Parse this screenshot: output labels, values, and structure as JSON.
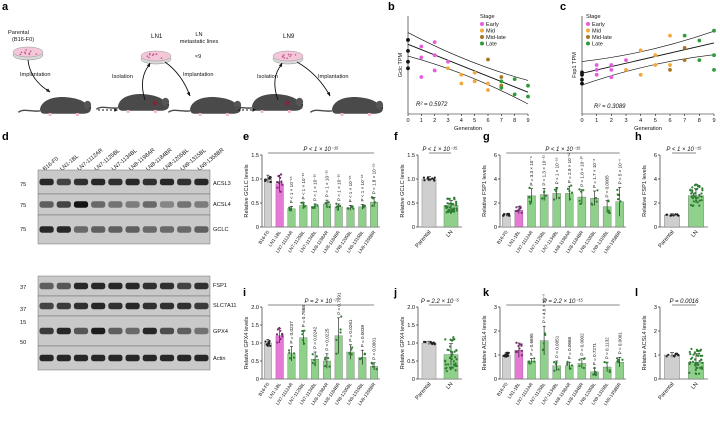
{
  "figure": {
    "panel_labels": [
      "a",
      "b",
      "c",
      "d",
      "e",
      "f",
      "g",
      "h",
      "i",
      "j",
      "k",
      "l"
    ],
    "a": {
      "parental_label": "Parental\n(B16-F0)",
      "ln1": "LN1",
      "ln_metastatic": "LN\nmetastatic lines",
      "times": "×9",
      "ln9": "LN9",
      "steps": [
        "Implantation",
        "Isolation",
        "Implantation",
        "Isolation",
        "Implantation"
      ]
    },
    "d": {
      "lanes": [
        "B16-F0",
        "LN1-1BL",
        "LN7-1112AR",
        "LN7-1125BL",
        "LN7-1134BL",
        "LN8-1198AR",
        "LN8-1184BR",
        "LN8-1205BL",
        "LN9-1315BL",
        "LN9-1358BR"
      ],
      "bands": [
        "ACSL3",
        "ACSL4",
        "GCLC",
        "FSP1",
        "SLC7A11",
        "GPX4",
        "Actin"
      ],
      "markers": [
        "75",
        "75",
        "75",
        "37",
        "37",
        "15",
        "50"
      ]
    },
    "stage_colors": {
      "Early": "#e75be0",
      "Mid": "#f2a93b",
      "Mid-late": "#a87726",
      "Late": "#2e9c3a",
      "Parental": "#111111"
    },
    "group_colors": {
      "parental": "#cfcfcf",
      "ln1": "#e678d6",
      "ln": "#8fd08a",
      "dot": "#2e7d32"
    }
  },
  "chart_data": [
    {
      "panel": "b",
      "type": "scatter",
      "ylabel": "Gclc TPM",
      "xlabel": "Generation",
      "xticks": [
        0,
        1,
        2,
        3,
        4,
        5,
        6,
        7,
        8,
        9
      ],
      "xlim": [
        0,
        9
      ],
      "ylim": [
        0,
        45
      ],
      "annotation": "R² = 0.5972",
      "legend_title": "Stage",
      "legend": [
        "Early",
        "Mid",
        "Mid-late",
        "Late"
      ],
      "series": [
        {
          "name": "Parental",
          "points": [
            [
              0,
              34
            ],
            [
              0,
              29
            ],
            [
              0,
              24
            ],
            [
              0,
              21
            ]
          ]
        },
        {
          "name": "Early",
          "points": [
            [
              1,
              31
            ],
            [
              1,
              26
            ],
            [
              1,
              17
            ],
            [
              2,
              33
            ],
            [
              2,
              27
            ],
            [
              2,
              20
            ],
            [
              3,
              24
            ]
          ]
        },
        {
          "name": "Mid",
          "points": [
            [
              3,
              21
            ],
            [
              4,
              18
            ],
            [
              4,
              14
            ],
            [
              5,
              19
            ],
            [
              5,
              15
            ],
            [
              6,
              14
            ],
            [
              6,
              11
            ]
          ]
        },
        {
          "name": "Mid-late",
          "points": [
            [
              6,
              25
            ],
            [
              7,
              17
            ],
            [
              7,
              13
            ]
          ]
        },
        {
          "name": "Late",
          "points": [
            [
              7,
              15
            ],
            [
              7,
              12
            ],
            [
              8,
              16
            ],
            [
              8,
              9
            ],
            [
              9,
              13
            ],
            [
              9,
              8
            ]
          ]
        }
      ],
      "fit": {
        "start": [
          0,
          32
        ],
        "end": [
          9,
          10
        ]
      }
    },
    {
      "panel": "c",
      "type": "scatter",
      "ylabel": "Fsp1 TPM",
      "xlabel": "Generation",
      "xticks": [
        0,
        1,
        2,
        3,
        4,
        5,
        6,
        7,
        8,
        9
      ],
      "xlim": [
        0,
        9
      ],
      "ylim": [
        0,
        20
      ],
      "annotation": "R² = 0.3089",
      "legend_title": "Stage",
      "legend": [
        "Early",
        "Mid",
        "Mid-late",
        "Late"
      ],
      "series": [
        {
          "name": "Parental",
          "points": [
            [
              0,
              8.5
            ],
            [
              0,
              8
            ],
            [
              0,
              7
            ],
            [
              0,
              6.2
            ]
          ]
        },
        {
          "name": "Early",
          "points": [
            [
              1,
              10
            ],
            [
              1,
              9
            ],
            [
              1,
              8
            ],
            [
              2,
              10
            ],
            [
              2,
              9
            ],
            [
              2,
              7.5
            ],
            [
              3,
              11
            ]
          ]
        },
        {
          "name": "Mid",
          "points": [
            [
              3,
              9
            ],
            [
              4,
              8
            ],
            [
              4,
              13
            ],
            [
              5,
              10
            ],
            [
              5,
              12
            ],
            [
              6,
              10
            ],
            [
              6,
              16
            ]
          ]
        },
        {
          "name": "Mid-late",
          "points": [
            [
              6,
              9
            ],
            [
              7,
              13.5
            ],
            [
              7,
              11
            ]
          ]
        },
        {
          "name": "Late",
          "points": [
            [
              7,
              16
            ],
            [
              8,
              15
            ],
            [
              8,
              11
            ],
            [
              9,
              17
            ],
            [
              9,
              12
            ],
            [
              9,
              9
            ]
          ]
        }
      ],
      "fit": {
        "start": [
          0,
          8.3
        ],
        "end": [
          9,
          14.5
        ]
      }
    },
    {
      "panel": "e",
      "type": "bar",
      "ylabel": "Relative GCLC levels",
      "ylim": [
        0,
        1.5
      ],
      "yticks": [
        "0",
        "0.5",
        "1.0",
        "1.5"
      ],
      "top_p": "P < 1 × 10⁻¹⁵",
      "categories": [
        "B16-F0",
        "LN1-1BL",
        "LN7-1112AR",
        "LN7-1125BL",
        "LN7-1134BL",
        "LN8-1198AR",
        "LN8-1184BR",
        "LN8-1205BL",
        "LN9-1315BL",
        "LN9-1358BR"
      ],
      "values": [
        1.0,
        0.9,
        0.38,
        0.45,
        0.43,
        0.48,
        0.42,
        0.4,
        0.42,
        0.52
      ],
      "errors": [
        0.08,
        0.18,
        0.05,
        0.06,
        0.05,
        0.08,
        0.06,
        0.05,
        0.05,
        0.1
      ],
      "pvals": [
        "",
        "",
        "P < 1 × 10⁻¹⁵",
        "P < 1 × 10⁻¹⁵",
        "P < 1 × 10⁻¹⁵",
        "P < 1 × 10⁻¹⁵",
        "P < 1 × 10⁻¹⁵",
        "P < 1 × 10⁻¹⁵",
        "P < 1 × 10⁻¹⁵",
        "P = 1.8 × 10⁻¹⁵"
      ]
    },
    {
      "panel": "f",
      "type": "bar",
      "ylabel": "Relative GCLC levels",
      "ylim": [
        0,
        1.5
      ],
      "yticks": [
        "0",
        "0.5",
        "1.0",
        "1.5"
      ],
      "top_p": "P < 1 × 10⁻¹⁵",
      "categories": [
        "Parental",
        "LN"
      ],
      "values": [
        1.0,
        0.45
      ],
      "errors": [
        0.05,
        0.1
      ]
    },
    {
      "panel": "g",
      "type": "bar",
      "ylabel": "Relative FSP1 levels",
      "ylim": [
        0,
        6
      ],
      "yticks": [
        "0",
        "2",
        "4",
        "6"
      ],
      "top_p": "P < 1 × 10⁻¹⁵",
      "categories": [
        "B16-F0",
        "LN1-1BL",
        "LN7-1112AR",
        "LN7-1125BL",
        "LN7-1134BL",
        "LN8-1198AR",
        "LN8-1184BR",
        "LN8-1205BL",
        "LN9-1315BL",
        "LN9-1358BR"
      ],
      "values": [
        1.0,
        1.4,
        2.6,
        2.7,
        2.8,
        2.8,
        2.5,
        2.4,
        1.7,
        2.1
      ],
      "errors": [
        0.1,
        0.3,
        0.6,
        0.5,
        0.5,
        0.6,
        0.6,
        0.6,
        0.5,
        1.2
      ],
      "pvals": [
        "",
        "",
        "P = 3.3 × 10⁻⁸",
        "P = 1.3 × 10⁻¹¹",
        "P < 1 × 10⁻¹⁵",
        "P = 2.9 × 10⁻¹²",
        "P = 1.8 × 10⁻¹⁰",
        "P = 1.7 × 10⁻⁸",
        "P = 0.0005",
        "P = 5 × 10⁻⁶"
      ]
    },
    {
      "panel": "h",
      "type": "bar",
      "ylabel": "Relative FSP1 levels",
      "ylim": [
        0,
        6
      ],
      "yticks": [
        "0",
        "2",
        "4",
        "6"
      ],
      "top_p": "P < 1 × 10⁻¹⁵",
      "categories": [
        "Parental",
        "LN"
      ],
      "values": [
        1.0,
        2.6
      ],
      "errors": [
        0.1,
        0.6
      ]
    },
    {
      "panel": "i",
      "type": "bar",
      "ylabel": "Relative GPX4 levels",
      "ylim": [
        0,
        2.0
      ],
      "yticks": [
        "0",
        "0.5",
        "1.0",
        "1.5",
        "2.0"
      ],
      "top_p": "P = 2 × 10⁻⁷",
      "categories": [
        "B16-F0",
        "LN1-1BL",
        "LN7-1112AR",
        "LN7-1125BL",
        "LN7-1134BL",
        "LN8-1198AR",
        "LN8-1184BR",
        "LN8-1205BL",
        "LN9-1315BL",
        "LN9-1358BR"
      ],
      "values": [
        1.0,
        1.2,
        0.7,
        1.15,
        0.55,
        0.5,
        1.2,
        0.75,
        0.6,
        0.35
      ],
      "errors": [
        0.1,
        0.2,
        0.2,
        0.2,
        0.2,
        0.2,
        0.5,
        0.2,
        0.2,
        0.1
      ],
      "pvals": [
        "",
        "",
        "P = 0.0237",
        "P = 0.7668",
        "P = 0.0242",
        "P = 0.0225",
        "P = 0.7091",
        "P = 0.0261",
        "P = 0.0039",
        "P = 0.0001"
      ]
    },
    {
      "panel": "j",
      "type": "bar",
      "ylabel": "Relative GPX4 levels",
      "ylim": [
        0,
        2.0
      ],
      "yticks": [
        "0",
        "0.5",
        "1.0",
        "1.5",
        "2.0"
      ],
      "top_p": "P = 2.2 × 10⁻⁵",
      "categories": [
        "Parental",
        "LN"
      ],
      "values": [
        1.0,
        0.68
      ],
      "errors": [
        0.05,
        0.3
      ]
    },
    {
      "panel": "k",
      "type": "bar",
      "ylabel": "Relative ACSL4 levels",
      "ylim": [
        0,
        3
      ],
      "yticks": [
        "0",
        "1",
        "2",
        "3"
      ],
      "top_p": "P = 2.2 × 10⁻¹⁵",
      "categories": [
        "B16-F0",
        "LN1-1BL",
        "LN7-1112AR",
        "LN7-1125BL",
        "LN7-1134BL",
        "LN8-1198AR",
        "LN8-1184BR",
        "LN8-1205BL",
        "LN9-1315BL",
        "LN9-1358BR"
      ],
      "values": [
        1.0,
        1.2,
        0.75,
        1.6,
        0.55,
        0.55,
        0.65,
        0.3,
        0.5,
        0.7
      ],
      "errors": [
        0.1,
        0.3,
        0.1,
        0.6,
        0.2,
        0.15,
        0.2,
        0.15,
        0.2,
        0.2
      ],
      "pvals": [
        "",
        "",
        "P = 0.6695",
        "P = 4.6 × 10⁻⁹",
        "P = 0.0051",
        "P = 0.0668",
        "P = 0.0002",
        "P = 0.7271",
        "P = 0.1132",
        "P = 0.0001"
      ]
    },
    {
      "panel": "l",
      "type": "bar",
      "ylabel": "Relative ACSL4 levels",
      "ylim": [
        0,
        3
      ],
      "yticks": [
        "0",
        "1",
        "2",
        "3"
      ],
      "top_p": "P = 0.0016",
      "categories": [
        "Parental",
        "LN"
      ],
      "values": [
        1.0,
        0.7
      ],
      "errors": [
        0.1,
        0.35
      ]
    }
  ]
}
